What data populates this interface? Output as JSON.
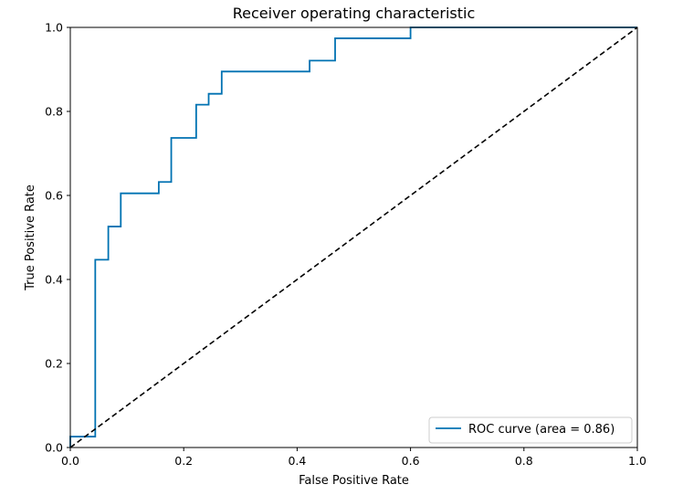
{
  "chart_data": {
    "type": "line",
    "title": "Receiver operating characteristic",
    "xlabel": "False Positive Rate",
    "ylabel": "True Positive Rate",
    "xlim": [
      0.0,
      1.0
    ],
    "ylim": [
      0.0,
      1.0
    ],
    "xticks": [
      "0.0",
      "0.2",
      "0.4",
      "0.6",
      "0.8",
      "1.0"
    ],
    "yticks": [
      "0.0",
      "0.2",
      "0.4",
      "0.6",
      "0.8",
      "1.0"
    ],
    "grid": false,
    "legend": {
      "placement": "lower-right",
      "entries": [
        "ROC curve (area = 0.86)"
      ]
    },
    "series": [
      {
        "name": "ROC curve (area = 0.86)",
        "style": "step",
        "color": "#0072b2",
        "x": [
          0.0,
          0.0,
          0.044,
          0.044,
          0.067,
          0.067,
          0.089,
          0.089,
          0.156,
          0.156,
          0.178,
          0.178,
          0.222,
          0.222,
          0.244,
          0.244,
          0.267,
          0.267,
          0.422,
          0.422,
          0.467,
          0.467,
          0.6,
          0.6,
          1.0
        ],
        "y": [
          0.0,
          0.026,
          0.026,
          0.447,
          0.447,
          0.526,
          0.526,
          0.605,
          0.605,
          0.632,
          0.632,
          0.737,
          0.737,
          0.816,
          0.816,
          0.842,
          0.842,
          0.895,
          0.895,
          0.921,
          0.921,
          0.974,
          0.974,
          1.0,
          1.0
        ]
      },
      {
        "name": "",
        "style": "dashed",
        "color": "#000000",
        "x": [
          0.0,
          1.0
        ],
        "y": [
          0.0,
          1.0
        ]
      }
    ]
  }
}
